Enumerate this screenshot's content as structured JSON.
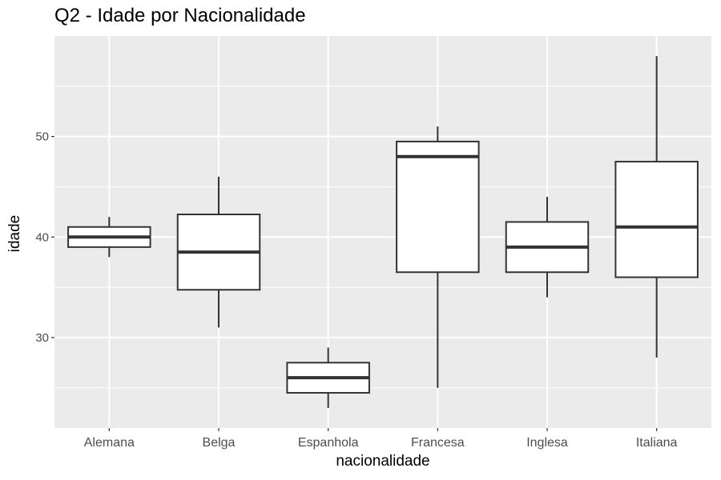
{
  "chart_data": {
    "type": "boxplot",
    "title": "Q2 - Idade por Nacionalidade",
    "xlabel": "nacionalidade",
    "ylabel": "idade",
    "ylim": [
      21,
      60
    ],
    "y_ticks": [
      30,
      40,
      50
    ],
    "y_minor_ticks": [
      25,
      35,
      45,
      55
    ],
    "grid": true,
    "categories": [
      "Alemana",
      "Belga",
      "Espanhola",
      "Francesa",
      "Inglesa",
      "Italiana"
    ],
    "boxes": [
      {
        "category": "Alemana",
        "min": 38,
        "q1": 39,
        "median": 40,
        "q3": 41,
        "max": 42
      },
      {
        "category": "Belga",
        "min": 31,
        "q1": 34.75,
        "median": 38.5,
        "q3": 42.25,
        "max": 46
      },
      {
        "category": "Espanhola",
        "min": 23,
        "q1": 24.5,
        "median": 26,
        "q3": 27.5,
        "max": 29
      },
      {
        "category": "Francesa",
        "min": 25,
        "q1": 36.5,
        "median": 48,
        "q3": 49.5,
        "max": 51
      },
      {
        "category": "Inglesa",
        "min": 34,
        "q1": 36.5,
        "median": 39,
        "q3": 41.5,
        "max": 44
      },
      {
        "category": "Italiana",
        "min": 28,
        "q1": 36,
        "median": 41,
        "q3": 47.5,
        "max": 58
      }
    ],
    "colors": {
      "panel": "#EBEBEB",
      "grid": "#FFFFFF",
      "box_fill": "#FFFFFF",
      "box_line": "#333333",
      "tick_text": "#4D4D4D"
    }
  }
}
